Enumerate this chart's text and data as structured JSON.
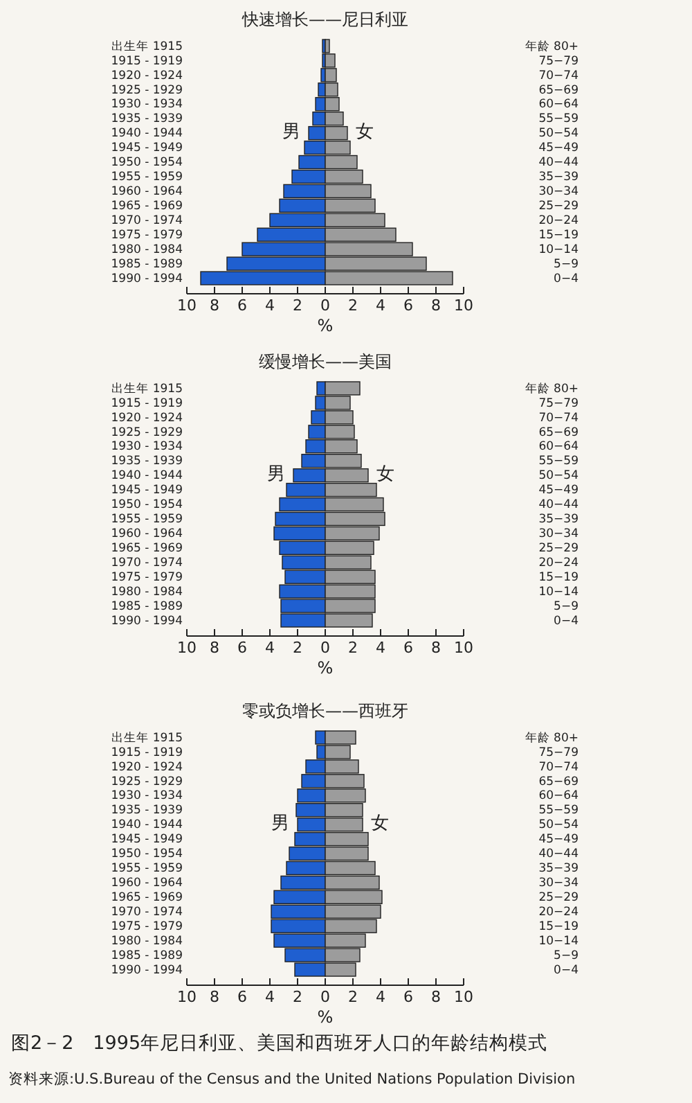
{
  "chart_data": [
    {
      "type": "bar",
      "orientation": "horizontal",
      "stacked": true,
      "title": "快速增长——尼日利亚",
      "xlabel": "%",
      "categories": [
        "出生年 1915",
        "1915 - 1919",
        "1920 - 1924",
        "1925 - 1929",
        "1930 - 1934",
        "1935 - 1939",
        "1940 - 1944",
        "1945 - 1949",
        "1950 - 1954",
        "1955 - 1959",
        "1960 - 1964",
        "1965 - 1969",
        "1970 - 1974",
        "1975 - 1979",
        "1980 - 1984",
        "1985 - 1989",
        "1990 - 1994"
      ],
      "y2_categories": [
        "年龄 80+",
        "75−79",
        "70−74",
        "65−69",
        "60−64",
        "55−59",
        "50−54",
        "45−49",
        "40−44",
        "35−39",
        "30−34",
        "25−29",
        "20−24",
        "15−19",
        "10−14",
        "5−9",
        "0−4"
      ],
      "series": [
        {
          "name": "男",
          "color": "#1f5fd0",
          "values": [
            -0.2,
            -0.2,
            -0.3,
            -0.5,
            -0.7,
            -0.9,
            -1.2,
            -1.5,
            -1.9,
            -2.4,
            -3.0,
            -3.3,
            -4.0,
            -4.9,
            -6.0,
            -7.1,
            -9.0
          ]
        },
        {
          "name": "女",
          "color": "#9c9c9c",
          "values": [
            0.3,
            0.7,
            0.8,
            0.9,
            1.0,
            1.3,
            1.6,
            1.8,
            2.3,
            2.7,
            3.3,
            3.6,
            4.3,
            5.1,
            6.3,
            7.3,
            9.2
          ]
        }
      ],
      "xlim": [
        -10,
        10
      ],
      "xticks": [
        {
          "value": -10,
          "label": "10"
        },
        {
          "value": -8,
          "label": "8"
        },
        {
          "value": -6,
          "label": "6"
        },
        {
          "value": -4,
          "label": "4"
        },
        {
          "value": -2,
          "label": "2"
        },
        0,
        2,
        4,
        6,
        8,
        10
      ]
    },
    {
      "type": "bar",
      "orientation": "horizontal",
      "stacked": true,
      "title": "缓慢增长——美国",
      "xlabel": "%",
      "categories": [
        "出生年 1915",
        "1915 - 1919",
        "1920 - 1924",
        "1925 - 1929",
        "1930 - 1934",
        "1935 - 1939",
        "1940 - 1944",
        "1945 - 1949",
        "1950 - 1954",
        "1955 - 1959",
        "1960 - 1964",
        "1965 - 1969",
        "1970 - 1974",
        "1975 - 1979",
        "1980 - 1984",
        "1985 - 1989",
        "1990 - 1994"
      ],
      "y2_categories": [
        "年龄 80+",
        "75−79",
        "70−74",
        "65−69",
        "60−64",
        "55−59",
        "50−54",
        "45−49",
        "40−44",
        "35−39",
        "30−34",
        "25−29",
        "20−24",
        "15−19",
        "10−14",
        "5−9",
        "0−4"
      ],
      "series": [
        {
          "name": "男",
          "color": "#1f5fd0",
          "values": [
            -0.6,
            -0.7,
            -1.0,
            -1.2,
            -1.4,
            -1.7,
            -2.3,
            -2.8,
            -3.3,
            -3.6,
            -3.7,
            -3.3,
            -3.1,
            -2.9,
            -3.3,
            -3.2,
            -3.2
          ]
        },
        {
          "name": "女",
          "color": "#9c9c9c",
          "values": [
            2.5,
            1.8,
            2.0,
            2.1,
            2.3,
            2.6,
            3.1,
            3.7,
            4.2,
            4.3,
            3.9,
            3.5,
            3.3,
            3.6,
            3.6,
            3.6,
            3.4
          ]
        }
      ],
      "xlim": [
        -10,
        10
      ],
      "xticks": [
        {
          "value": -10,
          "label": "10"
        },
        {
          "value": -8,
          "label": "8"
        },
        {
          "value": -6,
          "label": "6"
        },
        {
          "value": -4,
          "label": "4"
        },
        {
          "value": -2,
          "label": "2"
        },
        0,
        2,
        4,
        6,
        8,
        10
      ]
    },
    {
      "type": "bar",
      "orientation": "horizontal",
      "stacked": true,
      "title": "零或负增长——西班牙",
      "xlabel": "%",
      "categories": [
        "出生年 1915",
        "1915 - 1919",
        "1920 - 1924",
        "1925 - 1929",
        "1930 - 1934",
        "1935 - 1939",
        "1940 - 1944",
        "1945 - 1949",
        "1950 - 1954",
        "1955 - 1959",
        "1960 - 1964",
        "1965 - 1969",
        "1970 - 1974",
        "1975 - 1979",
        "1980 - 1984",
        "1985 - 1989",
        "1990 - 1994"
      ],
      "y2_categories": [
        "年龄 80+",
        "75−79",
        "70−74",
        "65−69",
        "60−64",
        "55−59",
        "50−54",
        "45−49",
        "40−44",
        "35−39",
        "30−34",
        "25−29",
        "20−24",
        "15−19",
        "10−14",
        "5−9",
        "0−4"
      ],
      "series": [
        {
          "name": "男",
          "color": "#1f5fd0",
          "values": [
            -0.7,
            -0.6,
            -1.4,
            -1.7,
            -2.0,
            -2.1,
            -2.0,
            -2.2,
            -2.6,
            -2.8,
            -3.2,
            -3.7,
            -3.9,
            -3.9,
            -3.7,
            -2.9,
            -2.2
          ]
        },
        {
          "name": "女",
          "color": "#9c9c9c",
          "values": [
            2.2,
            1.8,
            2.4,
            2.8,
            2.9,
            2.7,
            2.7,
            3.1,
            3.1,
            3.6,
            3.9,
            4.1,
            4.0,
            3.7,
            2.9,
            2.5,
            2.2
          ]
        }
      ],
      "xlim": [
        -10,
        10
      ],
      "xticks": [
        {
          "value": -10,
          "label": "10"
        },
        {
          "value": -8,
          "label": "8"
        },
        {
          "value": -6,
          "label": "6"
        },
        {
          "value": -4,
          "label": "4"
        },
        {
          "value": -2,
          "label": "2"
        },
        0,
        2,
        4,
        6,
        8,
        10
      ],
      "annotations": [
        "图2－2　1995年尼日利亚、美国和西班牙人口的年龄结构模式",
        "资料来源:U.S.Bureau of the Census and the  United Nations Population Division"
      ]
    }
  ]
}
